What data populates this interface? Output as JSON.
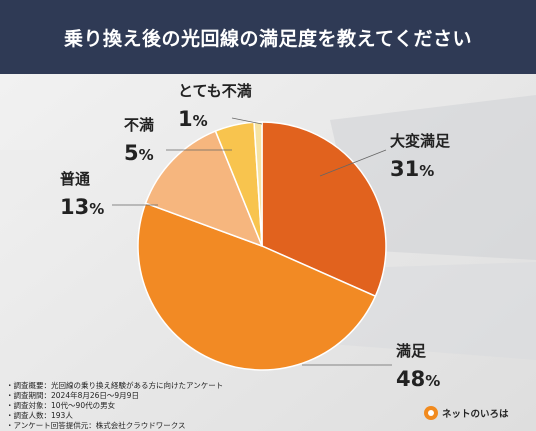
{
  "title": "乗り換え後の光回線の満足度を教えてください",
  "chart_data": {
    "type": "pie",
    "categories": [
      "大変満足",
      "満足",
      "普通",
      "不満",
      "とても不満"
    ],
    "values": [
      31,
      48,
      13,
      5,
      1
    ],
    "value_unit": "%",
    "colors": [
      "#e1621e",
      "#f28a24",
      "#f6b67e",
      "#f8c44e",
      "#f6e3a3"
    ]
  },
  "notes": [
    "・調査概要：光回線の乗り換え経験がある方に向けたアンケート",
    "・調査期間：2024年8月26日〜9月9日",
    "・調査対象：10代〜90代の男女",
    "・調査人数：193人",
    "・アンケート回答提供元：株式会社クラウドワークス"
  ],
  "logo": {
    "text": "ネットのいろは",
    "icon": "logo-mark-icon"
  }
}
